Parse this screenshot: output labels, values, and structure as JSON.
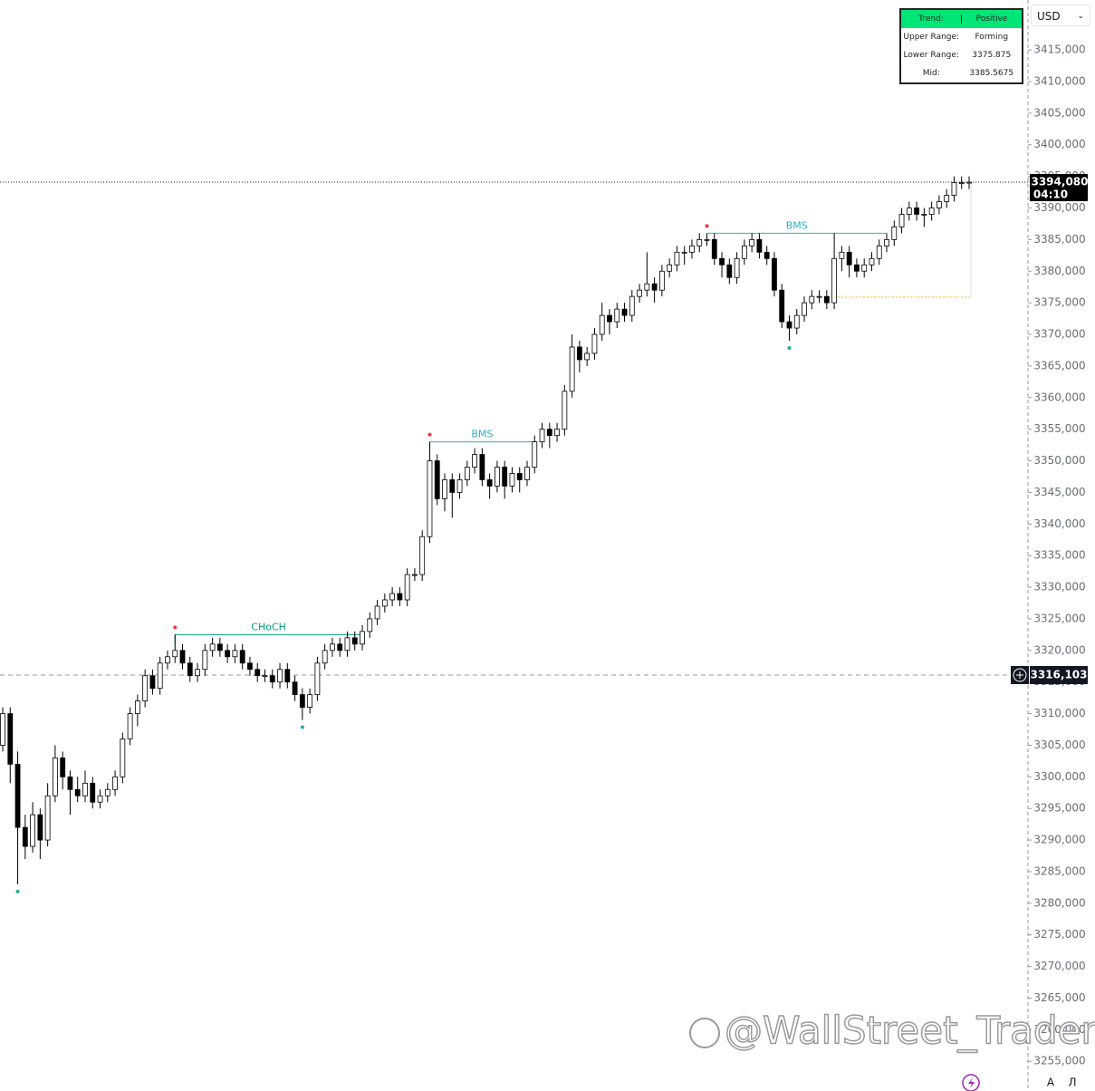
{
  "chart_data": {
    "type": "candlestick",
    "currency": "USD",
    "up_color": "#ffffff",
    "down_color": "#000000",
    "wick_color": "#000000",
    "ylim": [
      3250.3,
      3422.9
    ],
    "yticks": [
      {
        "value": 3415,
        "label": "3415,000"
      },
      {
        "value": 3410,
        "label": "3410,000"
      },
      {
        "value": 3405,
        "label": "3405,000"
      },
      {
        "value": 3400,
        "label": "3400,000"
      },
      {
        "value": 3395,
        "label": "3395,000"
      },
      {
        "value": 3390,
        "label": "3390,000"
      },
      {
        "value": 3385,
        "label": "3385,000"
      },
      {
        "value": 3380,
        "label": "3380,000"
      },
      {
        "value": 3375,
        "label": "3375,000"
      },
      {
        "value": 3370,
        "label": "3370,000"
      },
      {
        "value": 3365,
        "label": "3365,000"
      },
      {
        "value": 3360,
        "label": "3360,000"
      },
      {
        "value": 3355,
        "label": "3355,000"
      },
      {
        "value": 3350,
        "label": "3350,000"
      },
      {
        "value": 3345,
        "label": "3345,000"
      },
      {
        "value": 3340,
        "label": "3340,000"
      },
      {
        "value": 3335,
        "label": "3335,000"
      },
      {
        "value": 3330,
        "label": "3330,000"
      },
      {
        "value": 3325,
        "label": "3325,000"
      },
      {
        "value": 3320,
        "label": "3320,000"
      },
      {
        "value": 3315,
        "label": "3315,000"
      },
      {
        "value": 3310,
        "label": "3310,000"
      },
      {
        "value": 3305,
        "label": "3305,000"
      },
      {
        "value": 3300,
        "label": "3300,000"
      },
      {
        "value": 3295,
        "label": "3295,000"
      },
      {
        "value": 3290,
        "label": "3290,000"
      },
      {
        "value": 3285,
        "label": "3285,000"
      },
      {
        "value": 3280,
        "label": "3280,000"
      },
      {
        "value": 3275,
        "label": "3275,000"
      },
      {
        "value": 3270,
        "label": "3270,000"
      },
      {
        "value": 3265,
        "label": "3265,000"
      },
      {
        "value": 3260,
        "label": "3260,000"
      },
      {
        "value": 3255,
        "label": "3255,000"
      }
    ],
    "ohlc": [
      [
        3305,
        3311,
        3304,
        3310
      ],
      [
        3310,
        3311,
        3299,
        3302
      ],
      [
        3302,
        3304,
        3283,
        3292
      ],
      [
        3292,
        3294,
        3287,
        3289
      ],
      [
        3289,
        3296,
        3288,
        3294
      ],
      [
        3294,
        3295,
        3287,
        3290
      ],
      [
        3290,
        3299,
        3289,
        3297
      ],
      [
        3297,
        3305,
        3296,
        3303
      ],
      [
        3303,
        3304,
        3298,
        3300
      ],
      [
        3300,
        3301,
        3294,
        3298
      ],
      [
        3298,
        3300,
        3296,
        3297
      ],
      [
        3297,
        3301,
        3296,
        3299
      ],
      [
        3299,
        3300,
        3295,
        3296
      ],
      [
        3296,
        3298,
        3295,
        3297
      ],
      [
        3297,
        3299,
        3296,
        3298
      ],
      [
        3298,
        3301,
        3297,
        3300
      ],
      [
        3300,
        3307,
        3299,
        3306
      ],
      [
        3306,
        3311,
        3305,
        3310
      ],
      [
        3310,
        3313,
        3308,
        3312
      ],
      [
        3312,
        3317,
        3311,
        3316
      ],
      [
        3316,
        3317,
        3313,
        3314
      ],
      [
        3314,
        3319,
        3313,
        3318
      ],
      [
        3318,
        3320,
        3317,
        3319
      ],
      [
        3319,
        3322.5,
        3318,
        3320
      ],
      [
        3320,
        3321,
        3317,
        3318
      ],
      [
        3318,
        3319,
        3315,
        3316
      ],
      [
        3316,
        3318,
        3315,
        3317
      ],
      [
        3317,
        3321,
        3316,
        3320
      ],
      [
        3320,
        3322,
        3319,
        3321
      ],
      [
        3321,
        3322,
        3319,
        3320
      ],
      [
        3320,
        3321,
        3318,
        3319
      ],
      [
        3319,
        3321,
        3318,
        3320
      ],
      [
        3320,
        3321,
        3317,
        3318
      ],
      [
        3318,
        3319,
        3316,
        3317
      ],
      [
        3317,
        3318,
        3315,
        3316
      ],
      [
        3316,
        3317,
        3315,
        3316
      ],
      [
        3316,
        3317,
        3314,
        3315
      ],
      [
        3315,
        3318,
        3314,
        3317
      ],
      [
        3317,
        3318,
        3314,
        3315
      ],
      [
        3315,
        3316,
        3312,
        3313
      ],
      [
        3313,
        3314,
        3309,
        3311
      ],
      [
        3311,
        3314,
        3310,
        3313
      ],
      [
        3313,
        3319,
        3312,
        3318
      ],
      [
        3318,
        3321,
        3317,
        3320
      ],
      [
        3320,
        3322,
        3319,
        3321
      ],
      [
        3321,
        3322,
        3319,
        3320
      ],
      [
        3320,
        3323,
        3319,
        3322
      ],
      [
        3322,
        3323,
        3320,
        3321
      ],
      [
        3321,
        3324,
        3320,
        3323
      ],
      [
        3323,
        3326,
        3322,
        3325
      ],
      [
        3325,
        3328,
        3324,
        3327
      ],
      [
        3327,
        3329,
        3326,
        3328
      ],
      [
        3328,
        3330,
        3327,
        3329
      ],
      [
        3329,
        3330,
        3327,
        3328
      ],
      [
        3328,
        3333,
        3327,
        3332
      ],
      [
        3332,
        3333,
        3331,
        3332
      ],
      [
        3332,
        3339,
        3331,
        3338
      ],
      [
        3338,
        3353,
        3337,
        3350
      ],
      [
        3350,
        3351,
        3343,
        3344
      ],
      [
        3344,
        3348,
        3342,
        3347
      ],
      [
        3347,
        3348,
        3341,
        3345
      ],
      [
        3345,
        3348,
        3344,
        3347
      ],
      [
        3347,
        3350,
        3346,
        3349
      ],
      [
        3349,
        3352,
        3348,
        3351
      ],
      [
        3351,
        3352,
        3346,
        3347
      ],
      [
        3347,
        3348,
        3344,
        3346
      ],
      [
        3346,
        3350,
        3345,
        3349
      ],
      [
        3349,
        3350,
        3344,
        3346
      ],
      [
        3346,
        3349,
        3345,
        3348
      ],
      [
        3348,
        3349,
        3345,
        3347
      ],
      [
        3347,
        3350,
        3346,
        3349
      ],
      [
        3349,
        3354,
        3348,
        3353
      ],
      [
        3353,
        3356,
        3352,
        3355
      ],
      [
        3355,
        3356,
        3352,
        3354
      ],
      [
        3354,
        3356,
        3353,
        3355
      ],
      [
        3355,
        3362,
        3354,
        3361
      ],
      [
        3361,
        3370,
        3360,
        3368
      ],
      [
        3368,
        3369,
        3364,
        3366
      ],
      [
        3366,
        3368,
        3365,
        3367
      ],
      [
        3367,
        3371,
        3366,
        3370
      ],
      [
        3370,
        3375,
        3369,
        3373
      ],
      [
        3373,
        3374,
        3370,
        3372
      ],
      [
        3372,
        3375,
        3371,
        3374
      ],
      [
        3374,
        3375,
        3372,
        3373
      ],
      [
        3373,
        3377,
        3372,
        3376
      ],
      [
        3376,
        3378,
        3375,
        3377
      ],
      [
        3377,
        3383,
        3376,
        3378
      ],
      [
        3378,
        3379,
        3375,
        3377
      ],
      [
        3377,
        3381,
        3376,
        3380
      ],
      [
        3380,
        3382,
        3379,
        3381
      ],
      [
        3381,
        3384,
        3380,
        3383
      ],
      [
        3383,
        3384,
        3381,
        3383
      ],
      [
        3383,
        3385,
        3382,
        3384
      ],
      [
        3384,
        3386,
        3383,
        3385
      ],
      [
        3385,
        3386,
        3384,
        3385
      ],
      [
        3385,
        3386,
        3381,
        3382
      ],
      [
        3382,
        3383,
        3379,
        3381
      ],
      [
        3381,
        3382,
        3378,
        3379
      ],
      [
        3379,
        3383,
        3378,
        3382
      ],
      [
        3382,
        3385,
        3381,
        3384
      ],
      [
        3384,
        3386,
        3383,
        3385
      ],
      [
        3385,
        3386,
        3382,
        3383
      ],
      [
        3383,
        3384,
        3381,
        3382
      ],
      [
        3382,
        3383,
        3376,
        3377
      ],
      [
        3377,
        3378,
        3371,
        3372
      ],
      [
        3372,
        3373,
        3369,
        3371
      ],
      [
        3371,
        3374,
        3370,
        3373
      ],
      [
        3373,
        3376,
        3372,
        3375
      ],
      [
        3375,
        3377,
        3374,
        3376
      ],
      [
        3376,
        3377,
        3375,
        3376
      ],
      [
        3376,
        3377,
        3374,
        3375
      ],
      [
        3375,
        3386,
        3374,
        3382
      ],
      [
        3382,
        3384,
        3380,
        3383
      ],
      [
        3383,
        3384,
        3379,
        3381
      ],
      [
        3381,
        3382,
        3379,
        3380
      ],
      [
        3380,
        3382,
        3379,
        3381
      ],
      [
        3381,
        3383,
        3380,
        3382
      ],
      [
        3382,
        3385,
        3381,
        3384
      ],
      [
        3384,
        3386,
        3383,
        3385
      ],
      [
        3385,
        3388,
        3384,
        3387
      ],
      [
        3387,
        3390,
        3386,
        3389
      ],
      [
        3389,
        3391,
        3388,
        3390
      ],
      [
        3390,
        3391,
        3388,
        3389
      ],
      [
        3389,
        3390,
        3387,
        3389
      ],
      [
        3389,
        3391,
        3388,
        3390
      ],
      [
        3390,
        3392,
        3389,
        3391
      ],
      [
        3391,
        3393,
        3390,
        3392
      ],
      [
        3392,
        3395,
        3391,
        3394
      ],
      [
        3394,
        3395,
        3393,
        3394
      ],
      [
        3394,
        3395,
        3393,
        3394.08
      ]
    ],
    "structures": [
      {
        "label": "CHoCH",
        "level": 3322.5,
        "start": 23,
        "end": 48,
        "color": "#089981"
      },
      {
        "label": "BMS",
        "level": 3353,
        "start": 57,
        "end": 71,
        "color": "#2bb0c8"
      },
      {
        "label": "BMS",
        "level": 3386,
        "start": 94,
        "end": 118,
        "color": "#2bb0c8"
      }
    ],
    "swing_highs": [
      23,
      57,
      94
    ],
    "swing_lows": [
      2,
      40,
      105
    ],
    "high_color": "#f23645",
    "low_color": "#22ab94",
    "lower_range": 3375.875,
    "lower_range_start": 111,
    "mid": 3385.5675,
    "current_price": {
      "value": 3394.08,
      "label": "3394,080",
      "countdown": "04:10"
    },
    "crosshair": {
      "value": 3316.103,
      "label": "3316,103"
    },
    "table": {
      "trend_label": "Trend:",
      "trend": "Positive",
      "upper_label": "Upper Range:",
      "upper": "Forming",
      "lower_label": "Lower Range:",
      "mid_label": "Mid:"
    },
    "watermark": "@WallStreet_Trader",
    "buttons": [
      "A",
      "Л"
    ]
  }
}
